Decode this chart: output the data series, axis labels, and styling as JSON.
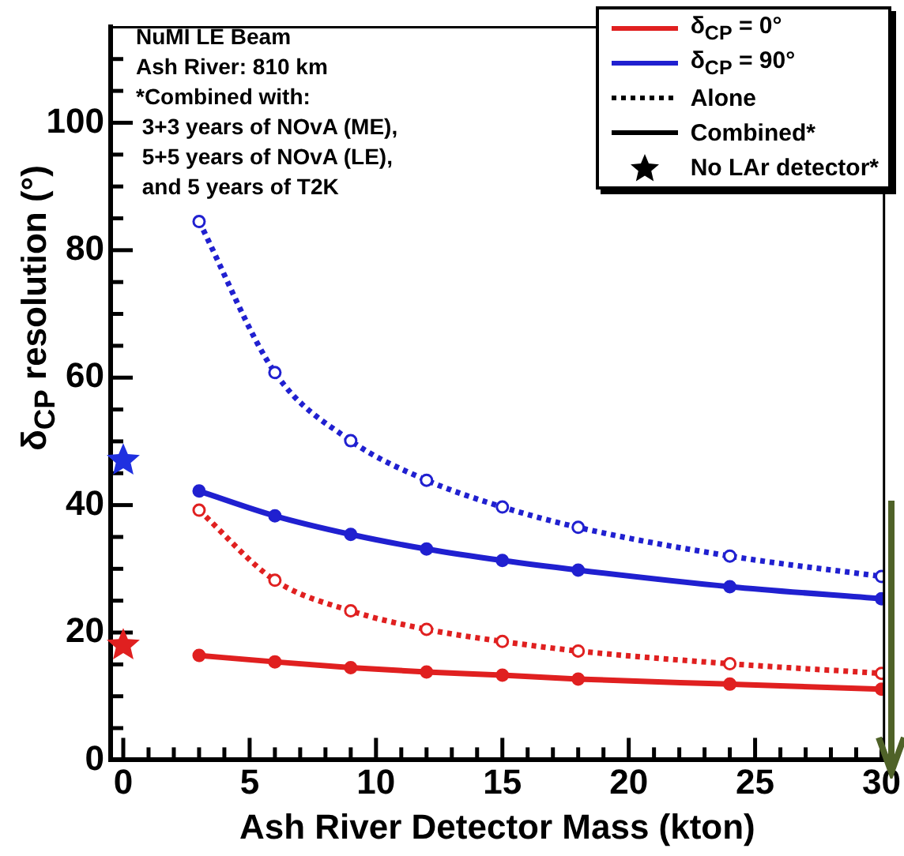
{
  "chart_data": {
    "type": "line",
    "xlabel": "Ash River Detector Mass (kton)",
    "ylabel": "δ$_{CP}$ resolution (°)",
    "xlim": [
      -0.5,
      30.1
    ],
    "ylim": [
      0,
      115
    ],
    "xticks": [
      0,
      {
        "value": 1,
        "label": null
      },
      {
        "value": 2,
        "label": null
      },
      {
        "value": 3,
        "label": null
      },
      {
        "value": 4,
        "label": null
      },
      5,
      {
        "value": 6,
        "label": null
      },
      {
        "value": 7,
        "label": null
      },
      {
        "value": 8,
        "label": null
      },
      {
        "value": 9,
        "label": null
      },
      10,
      {
        "value": 11,
        "label": null
      },
      {
        "value": 12,
        "label": null
      },
      {
        "value": 13,
        "label": null
      },
      {
        "value": 14,
        "label": null
      },
      15,
      {
        "value": 16,
        "label": null
      },
      {
        "value": 17,
        "label": null
      },
      {
        "value": 18,
        "label": null
      },
      {
        "value": 19,
        "label": null
      },
      20,
      {
        "value": 21,
        "label": null
      },
      {
        "value": 22,
        "label": null
      },
      {
        "value": 23,
        "label": null
      },
      {
        "value": 24,
        "label": null
      },
      25,
      {
        "value": 26,
        "label": null
      },
      {
        "value": 27,
        "label": null
      },
      {
        "value": 28,
        "label": null
      },
      {
        "value": 29,
        "label": null
      },
      30
    ],
    "yticks": [
      0,
      {
        "value": 5,
        "label": null
      },
      {
        "value": 10,
        "label": null
      },
      {
        "value": 15,
        "label": null
      },
      20,
      {
        "value": 25,
        "label": null
      },
      {
        "value": 30,
        "label": null
      },
      {
        "value": 35,
        "label": null
      },
      40,
      {
        "value": 45,
        "label": null
      },
      {
        "value": 50,
        "label": null
      },
      {
        "value": 55,
        "label": null
      },
      60,
      {
        "value": 65,
        "label": null
      },
      {
        "value": 70,
        "label": null
      },
      {
        "value": 75,
        "label": null
      },
      80,
      {
        "value": 85,
        "label": null
      },
      {
        "value": 90,
        "label": null
      },
      {
        "value": 95,
        "label": null
      },
      100,
      {
        "value": 105,
        "label": null
      },
      {
        "value": 110,
        "label": null
      }
    ],
    "grid": false,
    "legend": "top right",
    "marker": "circle",
    "annotations": [
      "NuMI LE Beam",
      "Ash River: 810 km",
      "*Combined with:",
      " 3+3 years of NOvA (ME),",
      " 5+5 years of NOvA (LE),",
      " and 5 years of T2K",
      "Alone",
      "Combined*",
      "No LAr detector*"
    ],
    "x": [
      3,
      6,
      9,
      12,
      15,
      18,
      24,
      30
    ],
    "series": [
      {
        "color": "#e02020",
        "line_style": "dotted",
        "values": [
          39.2,
          28.2,
          23.4,
          20.5,
          18.6,
          17.1,
          15.1,
          13.6
        ]
      },
      {
        "name": "δ$_{CP}$ = 0°",
        "color": "#e02020",
        "line_style": "solid",
        "values": [
          16.4,
          15.4,
          14.5,
          13.8,
          13.3,
          12.7,
          11.9,
          11.1
        ]
      },
      {
        "color": "#2020d0",
        "line_style": "dotted",
        "values": [
          84.5,
          60.8,
          50.1,
          43.9,
          39.7,
          36.5,
          32.0,
          28.8
        ]
      },
      {
        "name": "δ$_{CP}$ = 90°",
        "color": "#2020d0",
        "line_style": "solid",
        "values": [
          42.2,
          38.3,
          35.4,
          33.1,
          31.3,
          29.8,
          27.2,
          25.3
        ]
      },
      {
        "type": "scatter",
        "marker": "star",
        "x": [
          0,
          0
        ],
        "values": [
          47,
          18
        ],
        "colors": [
          "#2030e0",
          "#e02020"
        ]
      }
    ]
  }
}
